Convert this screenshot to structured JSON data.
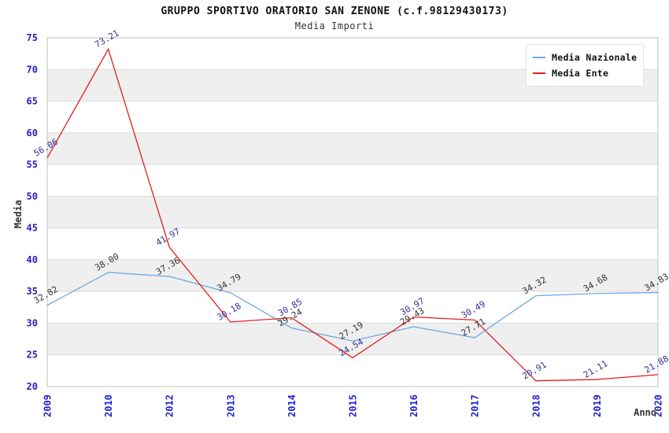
{
  "header": {
    "title": "GRUPPO SPORTIVO ORATORIO SAN ZENONE (c.f.98129430173)",
    "subtitle": "Media Importi"
  },
  "legend": {
    "items": [
      {
        "label": "Media Nazionale",
        "color": "#6fa8e0"
      },
      {
        "label": "Media Ente",
        "color": "#e81c1c"
      }
    ]
  },
  "chart_data": {
    "type": "line",
    "title": "GRUPPO SPORTIVO ORATORIO SAN ZENONE (c.f.98129430173)",
    "subtitle": "Media Importi",
    "xlabel": "Anno",
    "ylabel": "Media",
    "x": [
      "2009",
      "2010",
      "2012",
      "2013",
      "2014",
      "2015",
      "2016",
      "2017",
      "2018",
      "2019",
      "2020"
    ],
    "series": [
      {
        "name": "Media Nazionale",
        "color": "#6fa8e0",
        "label_color": "#333333",
        "values": [
          32.82,
          38.0,
          37.36,
          34.79,
          29.24,
          27.19,
          29.43,
          27.71,
          34.32,
          34.68,
          34.83
        ]
      },
      {
        "name": "Media Ente",
        "color": "#e81c1c",
        "label_color": "#333399",
        "values": [
          56.06,
          73.21,
          41.97,
          30.18,
          30.85,
          24.54,
          30.97,
          30.49,
          20.91,
          21.11,
          21.88
        ]
      }
    ],
    "ylim": [
      20,
      75
    ],
    "ytick_step": 5,
    "grid": "alternating-horizontal-bands",
    "legend_position": "top-right",
    "colors": {
      "tick_label": "#2222cc",
      "axis_title": "#333333",
      "band": "#efefef",
      "gridline": "#dcdcdc",
      "plot_border": "#c0c0c0",
      "background": "#ffffff"
    }
  }
}
